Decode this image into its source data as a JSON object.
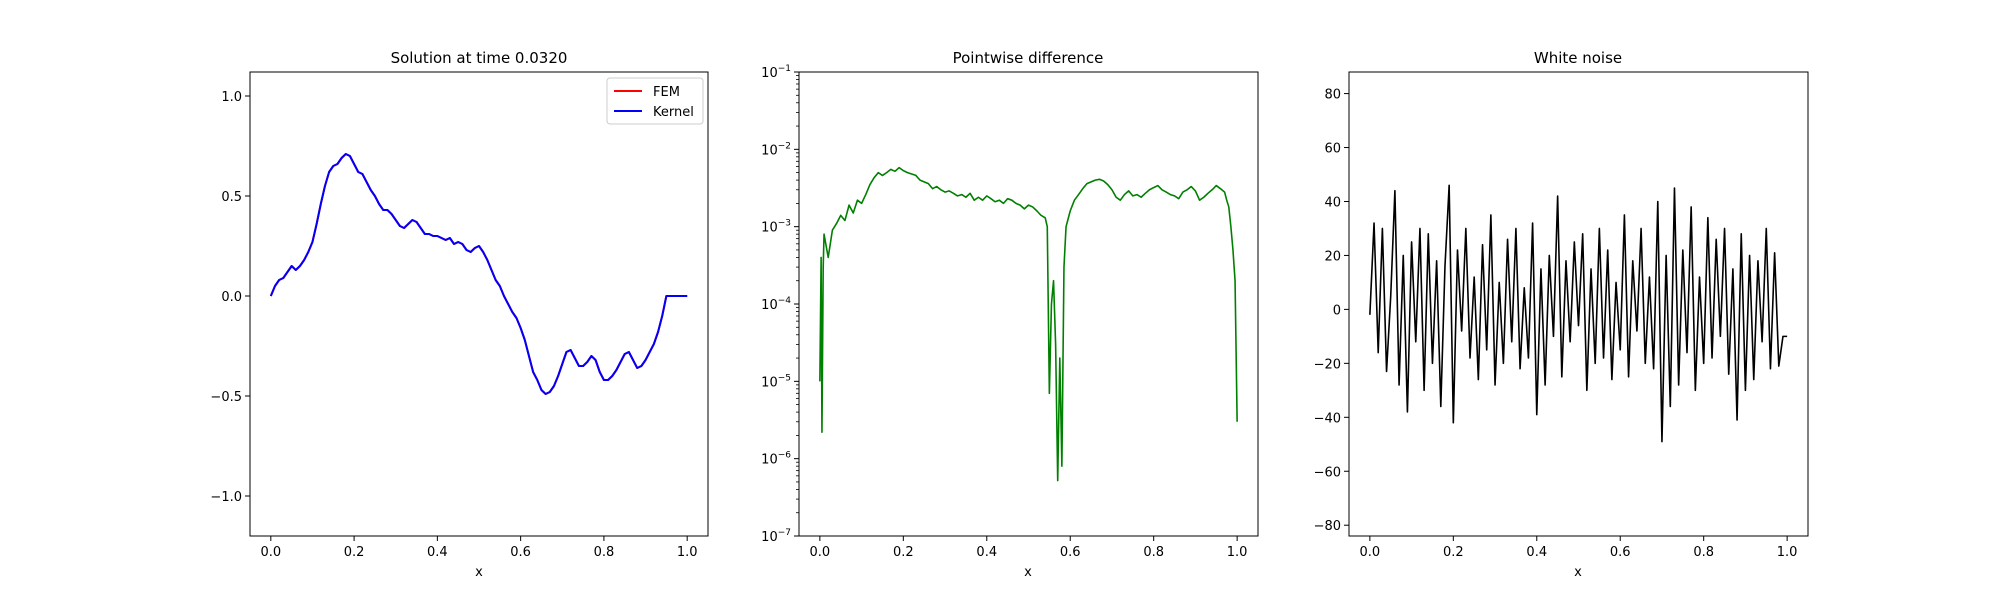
{
  "colors": {
    "fem": "#ff0000",
    "kernel": "#0000ff",
    "difference": "#008000",
    "noise": "#000000",
    "axes": "#000000",
    "background": "#ffffff"
  },
  "chart_data": [
    {
      "type": "line",
      "title": "Solution at time 0.0320",
      "xlabel": "x",
      "ylabel": "",
      "xlim": [
        -0.05,
        1.05
      ],
      "ylim": [
        -1.2,
        1.12
      ],
      "xticks": [
        0.0,
        0.2,
        0.4,
        0.6,
        0.8,
        1.0
      ],
      "xtick_labels": [
        "0.0",
        "0.2",
        "0.4",
        "0.6",
        "0.8",
        "1.0"
      ],
      "yticks": [
        -1.0,
        -0.5,
        0.0,
        0.5,
        1.0
      ],
      "ytick_labels": [
        "−1.0",
        "−0.5",
        "0.0",
        "0.5",
        "1.0"
      ],
      "legend": {
        "placement": "upper-right",
        "entries": [
          "FEM",
          "Kernel"
        ]
      },
      "x": [
        0.0,
        0.01,
        0.02,
        0.03,
        0.04,
        0.05,
        0.06,
        0.07,
        0.08,
        0.09,
        0.1,
        0.11,
        0.12,
        0.13,
        0.14,
        0.15,
        0.16,
        0.17,
        0.18,
        0.19,
        0.2,
        0.21,
        0.22,
        0.23,
        0.24,
        0.25,
        0.26,
        0.27,
        0.28,
        0.29,
        0.3,
        0.31,
        0.32,
        0.33,
        0.34,
        0.35,
        0.36,
        0.37,
        0.38,
        0.39,
        0.4,
        0.41,
        0.42,
        0.43,
        0.44,
        0.45,
        0.46,
        0.47,
        0.48,
        0.49,
        0.5,
        0.51,
        0.52,
        0.53,
        0.54,
        0.55,
        0.56,
        0.57,
        0.58,
        0.59,
        0.6,
        0.61,
        0.62,
        0.63,
        0.64,
        0.65,
        0.66,
        0.67,
        0.68,
        0.69,
        0.7,
        0.71,
        0.72,
        0.73,
        0.74,
        0.75,
        0.76,
        0.77,
        0.78,
        0.79,
        0.8,
        0.81,
        0.82,
        0.83,
        0.84,
        0.85,
        0.86,
        0.87,
        0.88,
        0.89,
        0.9,
        0.91,
        0.92,
        0.93,
        0.94,
        0.95,
        0.96,
        0.97,
        0.98,
        0.99,
        1.0
      ],
      "series": [
        {
          "name": "FEM",
          "values": [
            0.0,
            0.05,
            0.08,
            0.09,
            0.12,
            0.15,
            0.13,
            0.15,
            0.18,
            0.22,
            0.27,
            0.36,
            0.46,
            0.55,
            0.62,
            0.65,
            0.66,
            0.69,
            0.71,
            0.7,
            0.66,
            0.62,
            0.61,
            0.57,
            0.53,
            0.5,
            0.46,
            0.43,
            0.43,
            0.41,
            0.38,
            0.35,
            0.34,
            0.36,
            0.38,
            0.37,
            0.34,
            0.31,
            0.31,
            0.3,
            0.3,
            0.29,
            0.28,
            0.29,
            0.26,
            0.27,
            0.26,
            0.23,
            0.22,
            0.24,
            0.25,
            0.22,
            0.18,
            0.13,
            0.08,
            0.05,
            0.0,
            -0.04,
            -0.08,
            -0.11,
            -0.16,
            -0.22,
            -0.3,
            -0.38,
            -0.42,
            -0.47,
            -0.49,
            -0.48,
            -0.45,
            -0.4,
            -0.34,
            -0.28,
            -0.27,
            -0.31,
            -0.35,
            -0.35,
            -0.33,
            -0.3,
            -0.32,
            -0.38,
            -0.42,
            -0.42,
            -0.4,
            -0.37,
            -0.33,
            -0.29,
            -0.28,
            -0.32,
            -0.36,
            -0.35,
            -0.32,
            -0.28,
            -0.24,
            -0.18,
            -0.1,
            0.0,
            0.0,
            0.0,
            0.0,
            0.0,
            0.0
          ]
        },
        {
          "name": "Kernel",
          "values": [
            0.0,
            0.05,
            0.08,
            0.09,
            0.12,
            0.15,
            0.13,
            0.15,
            0.18,
            0.22,
            0.27,
            0.36,
            0.46,
            0.55,
            0.62,
            0.65,
            0.66,
            0.69,
            0.71,
            0.7,
            0.66,
            0.62,
            0.61,
            0.57,
            0.53,
            0.5,
            0.46,
            0.43,
            0.43,
            0.41,
            0.38,
            0.35,
            0.34,
            0.36,
            0.38,
            0.37,
            0.34,
            0.31,
            0.31,
            0.3,
            0.3,
            0.29,
            0.28,
            0.29,
            0.26,
            0.27,
            0.26,
            0.23,
            0.22,
            0.24,
            0.25,
            0.22,
            0.18,
            0.13,
            0.08,
            0.05,
            0.0,
            -0.04,
            -0.08,
            -0.11,
            -0.16,
            -0.22,
            -0.3,
            -0.38,
            -0.42,
            -0.47,
            -0.49,
            -0.48,
            -0.45,
            -0.4,
            -0.34,
            -0.28,
            -0.27,
            -0.31,
            -0.35,
            -0.35,
            -0.33,
            -0.3,
            -0.32,
            -0.38,
            -0.42,
            -0.42,
            -0.4,
            -0.37,
            -0.33,
            -0.29,
            -0.28,
            -0.32,
            -0.36,
            -0.35,
            -0.32,
            -0.28,
            -0.24,
            -0.18,
            -0.1,
            0.0,
            0.0,
            0.0,
            0.0,
            0.0,
            0.0
          ]
        }
      ]
    },
    {
      "type": "line",
      "title": "Pointwise difference",
      "xlabel": "x",
      "ylabel": "",
      "yscale": "log",
      "xlim": [
        -0.05,
        1.05
      ],
      "ylim": [
        1e-07,
        0.1
      ],
      "xticks": [
        0.0,
        0.2,
        0.4,
        0.6,
        0.8,
        1.0
      ],
      "xtick_labels": [
        "0.0",
        "0.2",
        "0.4",
        "0.6",
        "0.8",
        "1.0"
      ],
      "yticks": [
        1e-07,
        1e-06,
        1e-05,
        0.0001,
        0.001,
        0.01,
        0.1
      ],
      "ytick_labels": [
        {
          "base": "10",
          "exp": "−7"
        },
        {
          "base": "10",
          "exp": "−6"
        },
        {
          "base": "10",
          "exp": "−5"
        },
        {
          "base": "10",
          "exp": "−4"
        },
        {
          "base": "10",
          "exp": "−3"
        },
        {
          "base": "10",
          "exp": "−2"
        },
        {
          "base": "10",
          "exp": "−1"
        }
      ],
      "x": [
        0.0,
        0.003,
        0.005,
        0.008,
        0.01,
        0.02,
        0.03,
        0.04,
        0.05,
        0.06,
        0.07,
        0.08,
        0.09,
        0.1,
        0.11,
        0.12,
        0.13,
        0.14,
        0.15,
        0.16,
        0.17,
        0.18,
        0.19,
        0.2,
        0.21,
        0.22,
        0.23,
        0.24,
        0.25,
        0.26,
        0.27,
        0.28,
        0.29,
        0.3,
        0.31,
        0.32,
        0.33,
        0.34,
        0.35,
        0.36,
        0.37,
        0.38,
        0.39,
        0.4,
        0.41,
        0.42,
        0.43,
        0.44,
        0.45,
        0.46,
        0.47,
        0.48,
        0.49,
        0.5,
        0.51,
        0.52,
        0.53,
        0.54,
        0.545,
        0.55,
        0.555,
        0.56,
        0.565,
        0.57,
        0.575,
        0.58,
        0.585,
        0.59,
        0.6,
        0.61,
        0.62,
        0.63,
        0.64,
        0.65,
        0.66,
        0.67,
        0.68,
        0.69,
        0.7,
        0.71,
        0.72,
        0.73,
        0.74,
        0.75,
        0.76,
        0.77,
        0.78,
        0.79,
        0.8,
        0.81,
        0.82,
        0.83,
        0.84,
        0.85,
        0.86,
        0.87,
        0.88,
        0.89,
        0.9,
        0.91,
        0.92,
        0.93,
        0.94,
        0.95,
        0.96,
        0.97,
        0.975,
        0.98,
        0.985,
        0.99,
        0.995,
        1.0
      ],
      "values": [
        1e-05,
        0.0004,
        2.2e-06,
        0.0003,
        0.0008,
        0.0004,
        0.0009,
        0.0011,
        0.0014,
        0.0012,
        0.0019,
        0.0015,
        0.0022,
        0.002,
        0.0026,
        0.0035,
        0.0043,
        0.005,
        0.0046,
        0.005,
        0.0055,
        0.0052,
        0.0058,
        0.0053,
        0.005,
        0.0048,
        0.0046,
        0.004,
        0.0038,
        0.0036,
        0.0031,
        0.0033,
        0.003,
        0.0028,
        0.0029,
        0.0027,
        0.0025,
        0.0026,
        0.0024,
        0.0027,
        0.0022,
        0.0024,
        0.0022,
        0.0025,
        0.0023,
        0.0021,
        0.0022,
        0.002,
        0.0023,
        0.0022,
        0.002,
        0.0019,
        0.0017,
        0.0019,
        0.0018,
        0.0016,
        0.0014,
        0.0013,
        0.001,
        7e-06,
        0.0001,
        0.0002,
        3e-05,
        5.2e-07,
        2e-05,
        8e-07,
        0.0003,
        0.001,
        0.0016,
        0.0022,
        0.0026,
        0.0031,
        0.0036,
        0.0038,
        0.004,
        0.0041,
        0.0039,
        0.0035,
        0.003,
        0.0024,
        0.0022,
        0.0026,
        0.0029,
        0.0025,
        0.0026,
        0.0024,
        0.0027,
        0.003,
        0.0032,
        0.0034,
        0.003,
        0.0028,
        0.0026,
        0.0025,
        0.0023,
        0.0028,
        0.003,
        0.0033,
        0.0029,
        0.0022,
        0.0024,
        0.0027,
        0.003,
        0.0034,
        0.0031,
        0.0028,
        0.0022,
        0.0018,
        0.001,
        0.0005,
        0.0002,
        3e-06
      ]
    },
    {
      "type": "line",
      "title": "White noise",
      "xlabel": "x",
      "ylabel": "",
      "xlim": [
        -0.05,
        1.05
      ],
      "ylim": [
        -84,
        88
      ],
      "xticks": [
        0.0,
        0.2,
        0.4,
        0.6,
        0.8,
        1.0
      ],
      "xtick_labels": [
        "0.0",
        "0.2",
        "0.4",
        "0.6",
        "0.8",
        "1.0"
      ],
      "yticks": [
        -80,
        -60,
        -40,
        -20,
        0,
        20,
        40,
        60,
        80
      ],
      "ytick_labels": [
        "−80",
        "−60",
        "−40",
        "−20",
        "0",
        "20",
        "40",
        "60",
        "80"
      ],
      "x": [
        0.0,
        0.01,
        0.02,
        0.03,
        0.04,
        0.05,
        0.06,
        0.07,
        0.08,
        0.09,
        0.1,
        0.11,
        0.12,
        0.13,
        0.14,
        0.15,
        0.16,
        0.17,
        0.18,
        0.19,
        0.2,
        0.21,
        0.22,
        0.23,
        0.24,
        0.25,
        0.26,
        0.27,
        0.28,
        0.29,
        0.3,
        0.31,
        0.32,
        0.33,
        0.34,
        0.35,
        0.36,
        0.37,
        0.38,
        0.39,
        0.4,
        0.41,
        0.42,
        0.43,
        0.44,
        0.45,
        0.46,
        0.47,
        0.48,
        0.49,
        0.5,
        0.51,
        0.52,
        0.53,
        0.54,
        0.55,
        0.56,
        0.57,
        0.58,
        0.59,
        0.6,
        0.61,
        0.62,
        0.63,
        0.64,
        0.65,
        0.66,
        0.67,
        0.68,
        0.69,
        0.7,
        0.71,
        0.72,
        0.73,
        0.74,
        0.75,
        0.76,
        0.77,
        0.78,
        0.79,
        0.8,
        0.81,
        0.82,
        0.83,
        0.84,
        0.85,
        0.86,
        0.87,
        0.88,
        0.89,
        0.9,
        0.91,
        0.92,
        0.93,
        0.94,
        0.95,
        0.96,
        0.97,
        0.98,
        0.99,
        1.0
      ],
      "values": [
        -2,
        32,
        -16,
        30,
        -23,
        5,
        44,
        -28,
        20,
        -38,
        25,
        -12,
        30,
        -30,
        28,
        -20,
        18,
        -36,
        16,
        46,
        -42,
        22,
        -8,
        30,
        -18,
        12,
        -26,
        24,
        -15,
        35,
        -28,
        10,
        -20,
        26,
        -12,
        30,
        -22,
        8,
        -18,
        32,
        -39,
        15,
        -28,
        20,
        -10,
        42,
        -25,
        18,
        -12,
        25,
        -6,
        28,
        -30,
        15,
        -20,
        30,
        -18,
        22,
        -26,
        10,
        -15,
        35,
        -25,
        18,
        -8,
        30,
        -20,
        12,
        -22,
        40,
        -49,
        20,
        -36,
        45,
        -28,
        22,
        -16,
        38,
        -30,
        12,
        -20,
        34,
        -18,
        26,
        -10,
        30,
        -24,
        15,
        -41,
        28,
        -30,
        20,
        -26,
        18,
        -12,
        30,
        -22,
        21,
        -21,
        -10,
        -10
      ]
    }
  ]
}
